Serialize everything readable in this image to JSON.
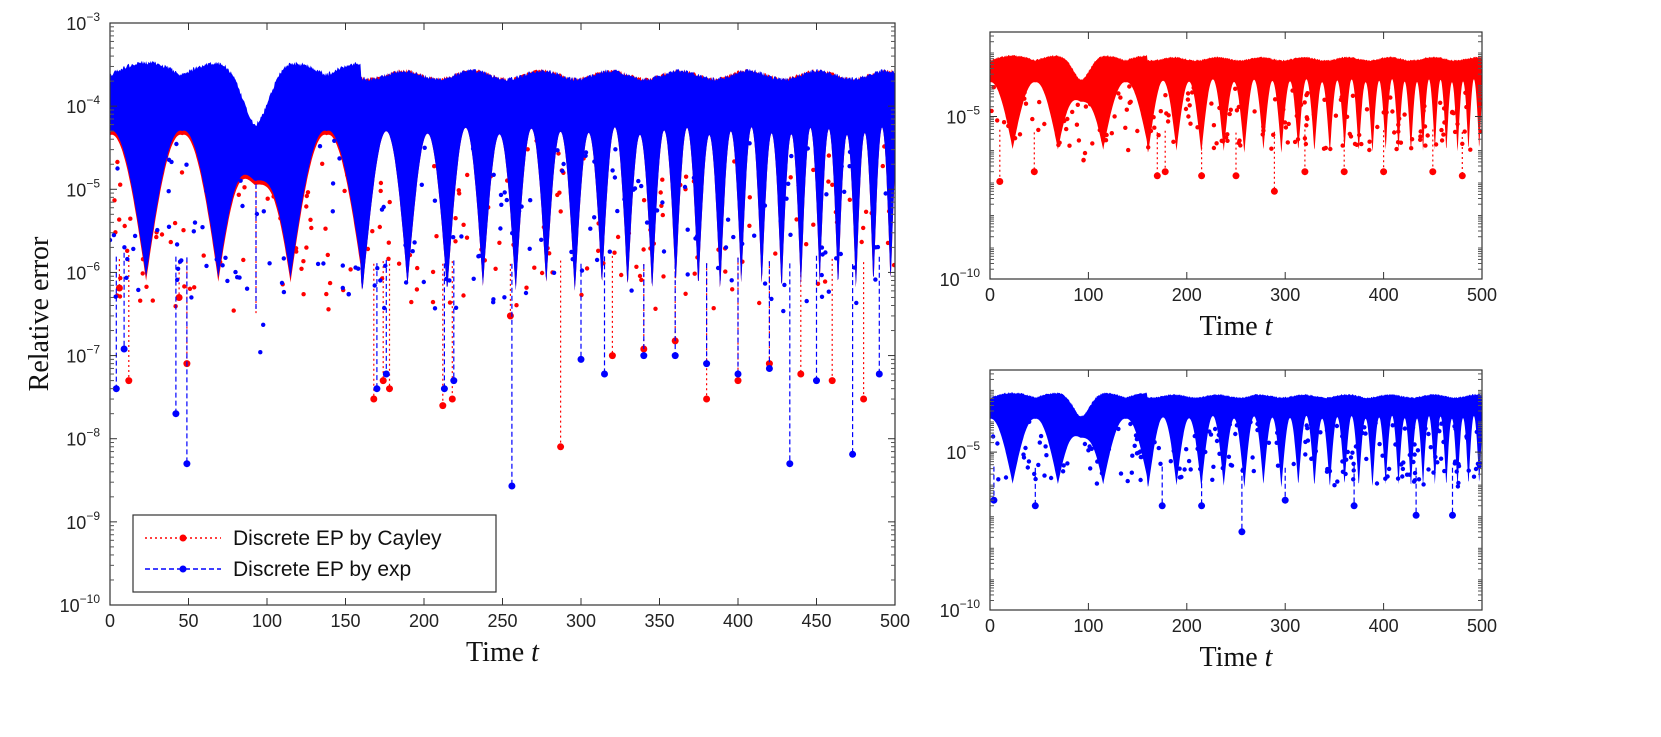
{
  "chart_data": [
    {
      "id": "main",
      "type": "line",
      "xlabel": "Time",
      "xlabel_var": "t",
      "ylabel": "Relative error",
      "xlim": [
        0,
        500
      ],
      "ylim_log10": [
        -10,
        -3
      ],
      "yscale": "log",
      "xticks": [
        0,
        50,
        100,
        150,
        200,
        250,
        300,
        350,
        400,
        450,
        500
      ],
      "yticks_exp": [
        -10,
        -9,
        -8,
        -7,
        -6,
        -5,
        -4,
        -3
      ],
      "legend": {
        "position": "bottom-left",
        "entries": [
          "Discrete EP by Cayley",
          "Discrete EP by exp"
        ]
      },
      "series": [
        {
          "name": "Discrete EP by Cayley",
          "color": "#ff0000",
          "style": "dotted",
          "dips": [
            [
              6,
              6.5e-07
            ],
            [
              12,
              5e-08
            ],
            [
              44,
              5e-07
            ],
            [
              49,
              8e-08
            ],
            [
              93,
              2e-05
            ],
            [
              168,
              3e-08
            ],
            [
              174,
              5e-08
            ],
            [
              178,
              4e-08
            ],
            [
              212,
              2.5e-08
            ],
            [
              218,
              3e-08
            ],
            [
              255,
              3e-07
            ],
            [
              287,
              8e-09
            ],
            [
              320,
              1e-07
            ],
            [
              340,
              1.2e-07
            ],
            [
              360,
              1.5e-07
            ],
            [
              380,
              3e-08
            ],
            [
              400,
              5e-08
            ],
            [
              420,
              8e-08
            ],
            [
              440,
              6e-08
            ],
            [
              460,
              5e-08
            ],
            [
              480,
              3e-08
            ]
          ]
        },
        {
          "name": "Discrete EP by exp",
          "color": "#0000ff",
          "style": "dashed",
          "dips": [
            [
              4,
              4e-08
            ],
            [
              9,
              1.2e-07
            ],
            [
              42,
              2e-08
            ],
            [
              49,
              5e-09
            ],
            [
              93,
              2.5e-05
            ],
            [
              170,
              4e-08
            ],
            [
              176,
              6e-08
            ],
            [
              213,
              4e-08
            ],
            [
              219,
              5e-08
            ],
            [
              256,
              2.7e-09
            ],
            [
              300,
              9e-08
            ],
            [
              315,
              6e-08
            ],
            [
              340,
              1e-07
            ],
            [
              360,
              1e-07
            ],
            [
              380,
              8e-08
            ],
            [
              400,
              6e-08
            ],
            [
              420,
              7e-08
            ],
            [
              433,
              5e-09
            ],
            [
              450,
              5e-08
            ],
            [
              473,
              6.5e-09
            ],
            [
              490,
              6e-08
            ]
          ]
        }
      ]
    },
    {
      "id": "top-right",
      "type": "line",
      "xlabel": "Time",
      "xlabel_var": "t",
      "xlim": [
        0,
        500
      ],
      "ylim_log10": [
        -10,
        -2.4
      ],
      "yscale": "log",
      "xticks": [
        0,
        100,
        200,
        300,
        400,
        500
      ],
      "yticks_exp": [
        -10,
        -5
      ],
      "series": [
        {
          "name": "Discrete EP by Cayley",
          "color": "#ff0000",
          "style": "dotted",
          "dips": [
            [
              10,
              1e-07
            ],
            [
              45,
              2e-07
            ],
            [
              170,
              1.5e-07
            ],
            [
              178,
              2e-07
            ],
            [
              215,
              1.5e-07
            ],
            [
              250,
              1.5e-07
            ],
            [
              289,
              5e-08
            ],
            [
              320,
              2e-07
            ],
            [
              360,
              2e-07
            ],
            [
              400,
              2e-07
            ],
            [
              450,
              2e-07
            ],
            [
              480,
              1.5e-07
            ]
          ]
        }
      ]
    },
    {
      "id": "bottom-right",
      "type": "line",
      "xlabel": "Time",
      "xlabel_var": "t",
      "xlim": [
        0,
        500
      ],
      "ylim_log10": [
        -10,
        -2.4
      ],
      "yscale": "log",
      "xticks": [
        0,
        100,
        200,
        300,
        400,
        500
      ],
      "yticks_exp": [
        -10,
        -5
      ],
      "series": [
        {
          "name": "Discrete EP by exp",
          "color": "#0000ff",
          "style": "dashed",
          "dips": [
            [
              4,
              3e-07
            ],
            [
              46,
              2e-07
            ],
            [
              175,
              2e-07
            ],
            [
              215,
              2e-07
            ],
            [
              256,
              3e-08
            ],
            [
              300,
              3e-07
            ],
            [
              370,
              2e-07
            ],
            [
              433,
              1e-07
            ],
            [
              470,
              1e-07
            ]
          ]
        }
      ]
    }
  ]
}
